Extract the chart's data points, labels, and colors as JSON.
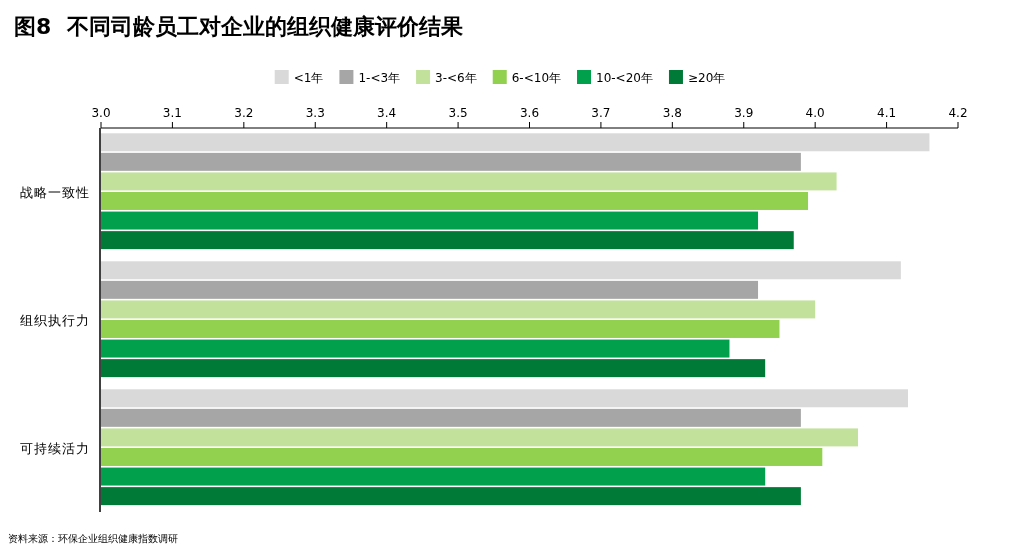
{
  "chart_data": {
    "type": "bar",
    "orientation": "horizontal",
    "title": "图8  不同司龄员工对企业的组织健康评价结果",
    "categories": [
      "战略一致性",
      "组织执行力",
      "可持续活力"
    ],
    "series": [
      {
        "name": "<1年",
        "color": "#d9d9d9",
        "values": [
          4.16,
          4.12,
          4.13
        ]
      },
      {
        "name": "1-<3年",
        "color": "#a6a6a6",
        "values": [
          3.98,
          3.92,
          3.98
        ]
      },
      {
        "name": "3-<6年",
        "color": "#c2e29c",
        "values": [
          4.03,
          4.0,
          4.06
        ]
      },
      {
        "name": "6-<10年",
        "color": "#92d050",
        "values": [
          3.99,
          3.95,
          4.01
        ]
      },
      {
        "name": "10-<20年",
        "color": "#00a04c",
        "values": [
          3.92,
          3.88,
          3.93
        ]
      },
      {
        "name": "≥20年",
        "color": "#007a37",
        "values": [
          3.97,
          3.93,
          3.98
        ]
      }
    ],
    "xlim": [
      3.0,
      4.2
    ],
    "xticks": [
      {
        "value": 3.0,
        "label": "3.0"
      },
      3.1,
      3.2,
      3.3,
      3.4,
      3.5,
      3.6,
      3.7,
      3.8,
      3.9,
      {
        "value": 4.0,
        "label": "4.0"
      },
      4.1,
      4.2
    ],
    "legend": "top",
    "annotations": [
      "资料来源：环保企业组织健康指数调研"
    ]
  }
}
